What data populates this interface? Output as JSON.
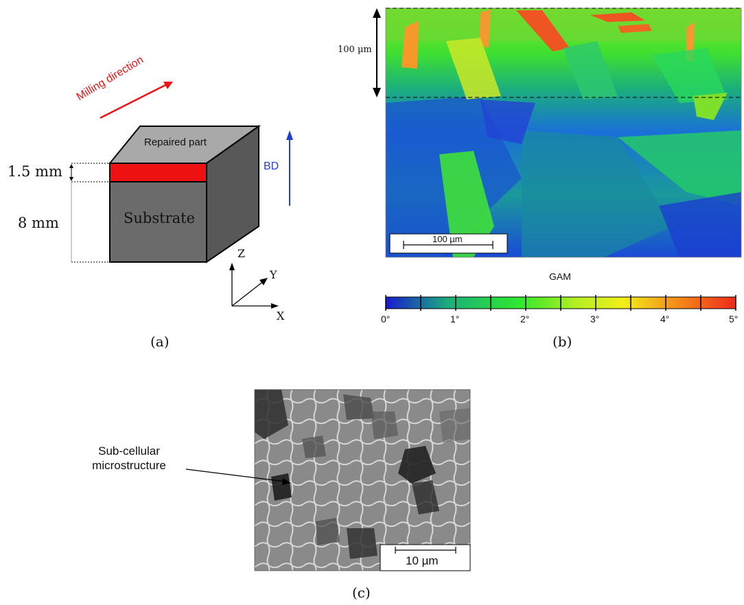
{
  "panel_a": {
    "caption": "(a)",
    "milling_direction": "Milling direction",
    "repaired_part": "Repaired part",
    "substrate": "Substrate",
    "dim_top": "1.5 mm",
    "dim_bottom": "8 mm",
    "build_direction": "BD",
    "axis_z": "Z",
    "axis_y": "Y",
    "axis_x": "X",
    "colors": {
      "deposit": "#ee1111",
      "top_face": "#a9a9a9",
      "front_face": "#6b6b6b",
      "side_face": "#585858",
      "milling": "#ee1111",
      "bd": "#1f3fd6"
    }
  },
  "panel_b": {
    "caption": "(b)",
    "depth_label": "100 µm",
    "scale_bar": "100 µm",
    "colorbar_title": "GAM",
    "colorbar_ticks": [
      "0°",
      "1°",
      "2°",
      "3°",
      "4°",
      "5°"
    ],
    "colormap": [
      "#1a1ad0",
      "#1bb07a",
      "#2ee82e",
      "#b8ee22",
      "#f2ee1a",
      "#f5931a",
      "#ee2a1a"
    ]
  },
  "panel_c": {
    "caption": "(c)",
    "annotation_line1": "Sub-cellular",
    "annotation_line2": "microstructure",
    "scale_bar": "10 µm"
  }
}
